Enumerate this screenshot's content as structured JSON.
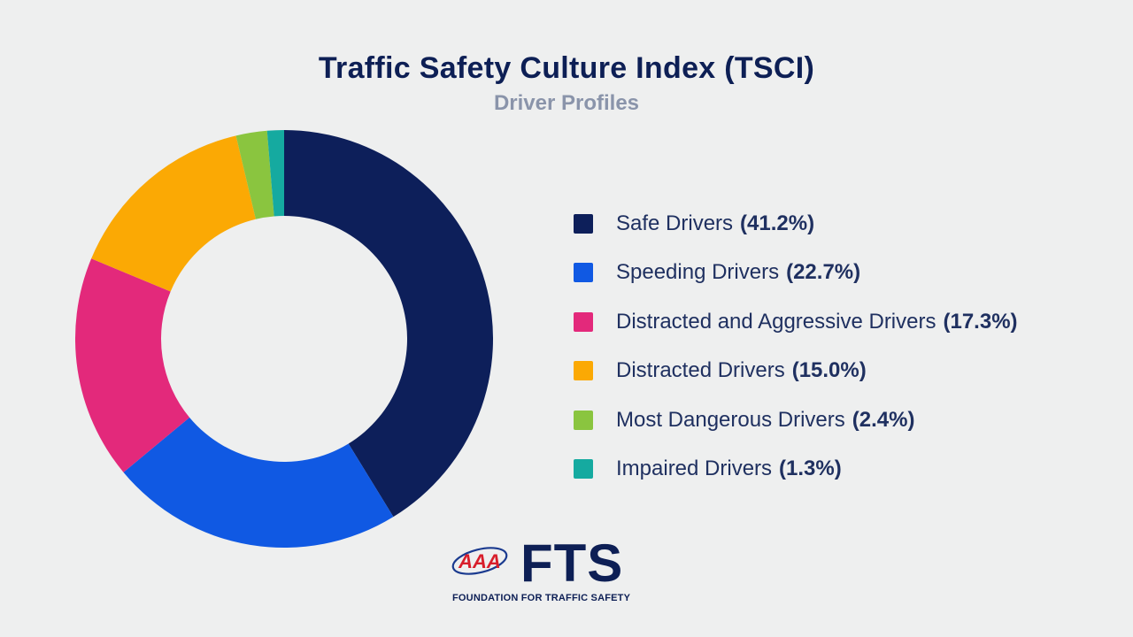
{
  "chart_data": {
    "type": "pie",
    "title": "Traffic Safety Culture Index (TSCI)",
    "subtitle": "Driver Profiles",
    "legend_position": "right",
    "series": [
      {
        "name": "Safe Drivers",
        "value": 41.2,
        "label": "(41.2%)",
        "color": "#0d1f5a"
      },
      {
        "name": "Speeding Drivers",
        "value": 22.7,
        "label": "(22.7%)",
        "color": "#1059e3"
      },
      {
        "name": "Distracted and Aggressive Drivers",
        "value": 17.3,
        "label": "(17.3%)",
        "color": "#e3297b"
      },
      {
        "name": "Distracted Drivers",
        "value": 15.0,
        "label": "(15.0%)",
        "color": "#fba904"
      },
      {
        "name": "Most Dangerous Drivers",
        "value": 2.4,
        "label": "(2.4%)",
        "color": "#8ac53f"
      },
      {
        "name": "Impaired Drivers",
        "value": 1.3,
        "label": "(1.3%)",
        "color": "#15aaa0"
      }
    ]
  },
  "logo": {
    "brand": "FTS",
    "tagline": "FOUNDATION FOR TRAFFIC SAFETY",
    "mark_text": "AAA"
  }
}
